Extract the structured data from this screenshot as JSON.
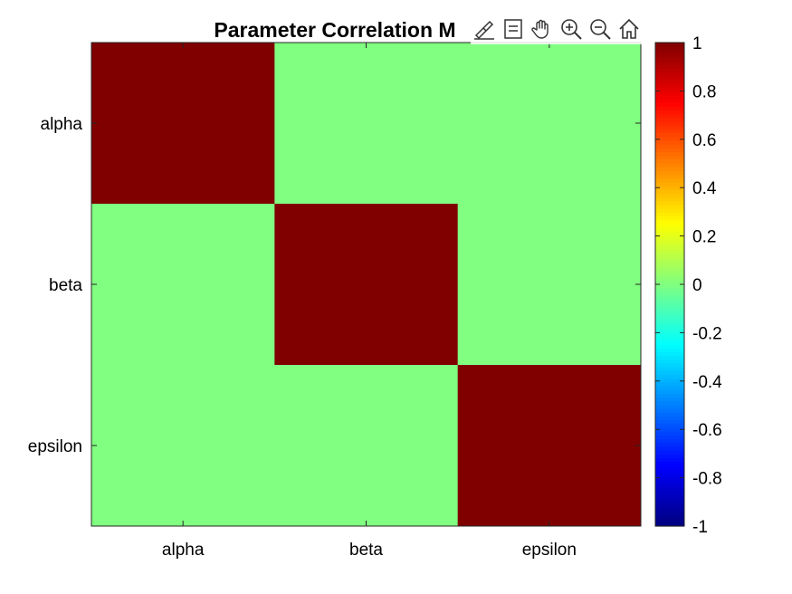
{
  "chart_data": {
    "type": "heatmap",
    "title": "Parameter Correlation M",
    "x_labels": [
      "alpha",
      "beta",
      "epsilon"
    ],
    "y_labels": [
      "alpha",
      "beta",
      "epsilon"
    ],
    "matrix": [
      [
        1,
        0,
        0
      ],
      [
        0,
        1,
        0
      ],
      [
        0,
        0,
        1
      ]
    ],
    "colormap": "jet",
    "clim": [
      -1,
      1
    ],
    "colorbar_ticks": [
      "1",
      "0.8",
      "0.6",
      "0.4",
      "0.2",
      "0",
      "-0.2",
      "-0.4",
      "-0.6",
      "-0.8",
      "-1"
    ],
    "colorbar_tick_values": [
      1,
      0.8,
      0.6,
      0.4,
      0.2,
      0,
      -0.2,
      -0.4,
      -0.6,
      -0.8,
      -1
    ],
    "colorbar_placement": "right",
    "grid": false
  },
  "toolbar": {
    "icons": [
      "brush-icon",
      "datatip-icon",
      "pan-hand-icon",
      "zoom-in-icon",
      "zoom-out-icon",
      "home-icon"
    ]
  }
}
